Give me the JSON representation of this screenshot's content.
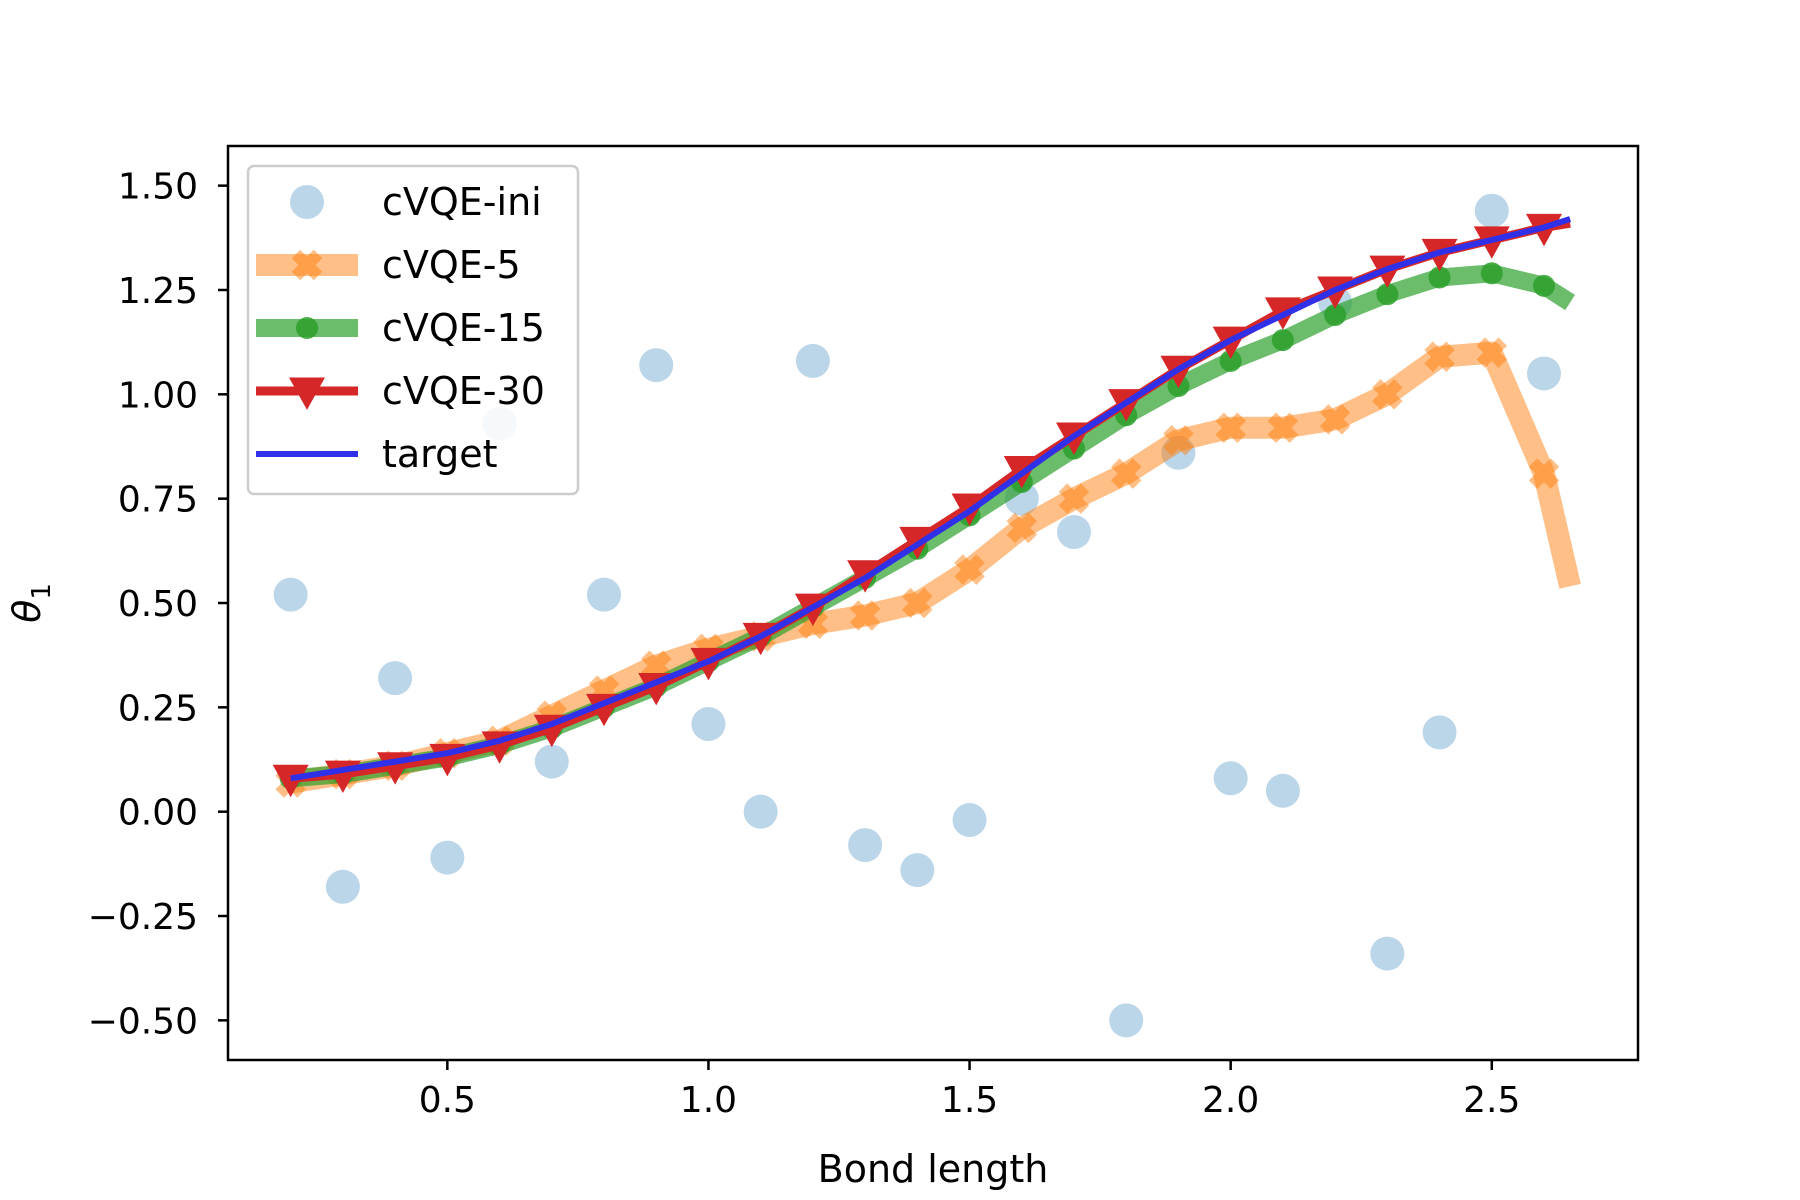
{
  "chart_data": {
    "type": "line",
    "title": "",
    "xlabel": "Bond length",
    "ylabel": "θ",
    "ylabel_subscript": "1",
    "xlim": [
      0.08,
      2.78
    ],
    "ylim": [
      -0.595,
      1.595
    ],
    "xticks": [
      0.5,
      1.0,
      1.5,
      2.0,
      2.5
    ],
    "xtick_labels": [
      "0.5",
      "1.0",
      "1.5",
      "2.0",
      "2.5"
    ],
    "yticks": [
      -0.5,
      -0.25,
      0.0,
      0.25,
      0.5,
      0.75,
      1.0,
      1.25,
      1.5
    ],
    "ytick_labels": [
      "−0.50",
      "−0.25",
      "0.00",
      "0.25",
      "0.50",
      "0.75",
      "1.00",
      "1.25",
      "1.50"
    ],
    "grid": false,
    "legend_position": "top-left",
    "series": [
      {
        "name": "cVQE-ini",
        "style": "markers",
        "marker": "circle",
        "color": "#9ec3df",
        "opacity": 0.7,
        "x": [
          0.2,
          0.3,
          0.4,
          0.5,
          0.6,
          0.7,
          0.8,
          0.9,
          1.0,
          1.1,
          1.2,
          1.3,
          1.4,
          1.5,
          1.6,
          1.7,
          1.8,
          1.9,
          2.0,
          2.1,
          2.2,
          2.3,
          2.4,
          2.5,
          2.6
        ],
        "y": [
          0.52,
          -0.18,
          0.32,
          -0.11,
          0.93,
          0.12,
          0.52,
          1.07,
          0.21,
          0.0,
          1.08,
          -0.08,
          -0.14,
          -0.02,
          0.75,
          0.67,
          -0.5,
          0.86,
          0.08,
          0.05,
          1.22,
          -0.34,
          0.19,
          1.44,
          1.05
        ]
      },
      {
        "name": "cVQE-5",
        "style": "line+markers",
        "marker": "x",
        "color": "#ff7f0e",
        "opacity": 0.5,
        "x": [
          0.2,
          0.3,
          0.4,
          0.5,
          0.6,
          0.7,
          0.8,
          0.9,
          1.0,
          1.1,
          1.2,
          1.3,
          1.4,
          1.5,
          1.6,
          1.7,
          1.8,
          1.9,
          2.0,
          2.1,
          2.2,
          2.3,
          2.4,
          2.5,
          2.6
        ],
        "y": [
          0.07,
          0.09,
          0.11,
          0.14,
          0.17,
          0.23,
          0.29,
          0.35,
          0.39,
          0.42,
          0.45,
          0.47,
          0.5,
          0.58,
          0.68,
          0.75,
          0.81,
          0.89,
          0.92,
          0.92,
          0.94,
          1.0,
          1.09,
          1.1,
          0.81
        ],
        "line_end": {
          "x": 2.65,
          "y": 0.54
        }
      },
      {
        "name": "cVQE-15",
        "style": "line+markers",
        "marker": "dot",
        "color": "#2ca02c",
        "opacity": 0.7,
        "x": [
          0.2,
          0.3,
          0.4,
          0.5,
          0.6,
          0.7,
          0.8,
          0.9,
          1.0,
          1.1,
          1.2,
          1.3,
          1.4,
          1.5,
          1.6,
          1.7,
          1.8,
          1.9,
          2.0,
          2.1,
          2.2,
          2.3,
          2.4,
          2.5,
          2.6
        ],
        "y": [
          0.08,
          0.09,
          0.11,
          0.13,
          0.16,
          0.2,
          0.25,
          0.3,
          0.36,
          0.42,
          0.49,
          0.56,
          0.63,
          0.71,
          0.79,
          0.87,
          0.95,
          1.02,
          1.08,
          1.13,
          1.19,
          1.24,
          1.28,
          1.29,
          1.26
        ],
        "line_end": {
          "x": 2.65,
          "y": 1.22
        }
      },
      {
        "name": "cVQE-30",
        "style": "line+markers",
        "marker": "triangle-down",
        "color": "#d62728",
        "opacity": 1.0,
        "x": [
          0.2,
          0.3,
          0.4,
          0.5,
          0.6,
          0.7,
          0.8,
          0.9,
          1.0,
          1.1,
          1.2,
          1.3,
          1.4,
          1.5,
          1.6,
          1.7,
          1.8,
          1.9,
          2.0,
          2.1,
          2.2,
          2.3,
          2.4,
          2.5,
          2.6
        ],
        "y": [
          0.08,
          0.09,
          0.11,
          0.13,
          0.16,
          0.2,
          0.25,
          0.3,
          0.36,
          0.42,
          0.49,
          0.57,
          0.65,
          0.73,
          0.82,
          0.9,
          0.98,
          1.06,
          1.13,
          1.2,
          1.25,
          1.3,
          1.34,
          1.37,
          1.4
        ],
        "line_end": {
          "x": 2.65,
          "y": 1.41
        }
      },
      {
        "name": "target",
        "style": "line",
        "color": "#3030e8",
        "opacity": 1.0,
        "x": [
          0.2,
          0.3,
          0.4,
          0.5,
          0.6,
          0.7,
          0.8,
          0.9,
          1.0,
          1.1,
          1.2,
          1.3,
          1.4,
          1.5,
          1.6,
          1.7,
          1.8,
          1.9,
          2.0,
          2.1,
          2.2,
          2.3,
          2.4,
          2.5,
          2.6,
          2.65
        ],
        "y": [
          0.08,
          0.1,
          0.12,
          0.14,
          0.17,
          0.21,
          0.26,
          0.31,
          0.36,
          0.42,
          0.49,
          0.56,
          0.64,
          0.72,
          0.81,
          0.9,
          0.98,
          1.06,
          1.13,
          1.19,
          1.25,
          1.3,
          1.34,
          1.37,
          1.4,
          1.42
        ]
      }
    ]
  }
}
